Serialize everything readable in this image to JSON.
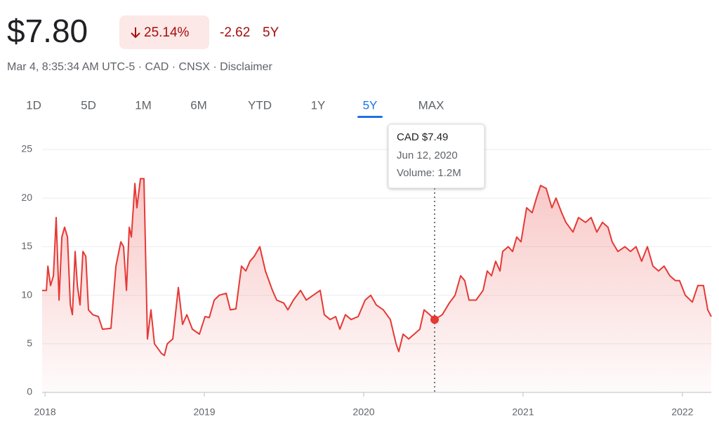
{
  "header": {
    "price": "$7.80",
    "change_pct": "25.14%",
    "change": "-2.62",
    "period": "5Y",
    "meta": "Mar 4, 8:35:34 AM UTC-5 · CAD · CNSX · Disclaimer"
  },
  "tabs": {
    "labels": [
      "1D",
      "5D",
      "1M",
      "6M",
      "YTD",
      "1Y",
      "5Y",
      "MAX"
    ],
    "selected": 6
  },
  "tooltip": {
    "price": "CAD $7.49",
    "date": "Jun 12, 2020",
    "volume": "Volume: 1.2M"
  },
  "chart_data": {
    "type": "area",
    "color": "#e53935",
    "xlim": [
      2017.982,
      2022.181
    ],
    "xticks": [
      2018,
      2019,
      2020,
      2021,
      2022
    ],
    "ylim": [
      0,
      25
    ],
    "yticks": [
      0,
      5,
      10,
      15,
      20,
      25
    ],
    "grid": true,
    "highlight": {
      "x": 2020.445,
      "y": 7.49
    },
    "x": [
      2017.982,
      2018.009,
      2018.018,
      2018.035,
      2018.053,
      2018.07,
      2018.088,
      2018.106,
      2018.123,
      2018.141,
      2018.159,
      2018.172,
      2018.189,
      2018.203,
      2018.22,
      2018.238,
      2018.256,
      2018.273,
      2018.3,
      2018.335,
      2018.361,
      2018.414,
      2018.445,
      2018.476,
      2018.493,
      2018.511,
      2018.529,
      2018.542,
      2018.564,
      2018.577,
      2018.599,
      2018.621,
      2018.643,
      2018.665,
      2018.687,
      2018.731,
      2018.749,
      2018.767,
      2018.802,
      2018.837,
      2018.863,
      2018.89,
      2018.925,
      2018.969,
      2019.004,
      2019.031,
      2019.062,
      2019.093,
      2019.137,
      2019.163,
      2019.198,
      2019.233,
      2019.26,
      2019.286,
      2019.313,
      2019.348,
      2019.383,
      2019.427,
      2019.454,
      2019.498,
      2019.524,
      2019.559,
      2019.604,
      2019.639,
      2019.683,
      2019.727,
      2019.753,
      2019.789,
      2019.824,
      2019.85,
      2019.885,
      2019.921,
      2019.965,
      2020.009,
      2020.044,
      2020.079,
      2020.123,
      2020.167,
      2020.203,
      2020.22,
      2020.247,
      2020.282,
      2020.317,
      2020.352,
      2020.379,
      2020.414,
      2020.445,
      2020.493,
      2020.537,
      2020.573,
      2020.608,
      2020.634,
      2020.661,
      2020.705,
      2020.749,
      2020.775,
      2020.802,
      2020.828,
      2020.855,
      2020.872,
      2020.907,
      2020.934,
      2020.96,
      2020.987,
      2021.022,
      2021.057,
      2021.084,
      2021.11,
      2021.145,
      2021.181,
      2021.207,
      2021.242,
      2021.269,
      2021.313,
      2021.348,
      2021.392,
      2021.427,
      2021.463,
      2021.498,
      2021.533,
      2021.559,
      2021.595,
      2021.639,
      2021.674,
      2021.709,
      2021.744,
      2021.78,
      2021.815,
      2021.85,
      2021.885,
      2021.921,
      2021.956,
      2021.982,
      2022.018,
      2022.062,
      2022.097,
      2022.132,
      2022.159,
      2022.181
    ],
    "values": [
      10.5,
      10.5,
      13,
      11,
      12,
      18,
      9.5,
      16,
      17,
      16,
      9,
      8,
      14.5,
      11,
      9,
      14.5,
      14,
      8.5,
      8,
      7.8,
      6.5,
      6.6,
      13,
      15.5,
      15,
      10.5,
      17,
      16,
      21.5,
      19,
      22,
      22,
      5.5,
      8.5,
      5,
      4,
      3.8,
      5,
      5.5,
      10.8,
      7,
      8,
      6.5,
      6,
      7.8,
      7.7,
      9.5,
      10,
      10.2,
      8.5,
      8.6,
      13,
      12.5,
      13.5,
      14,
      15,
      12.5,
      10.5,
      9.5,
      9.2,
      8.5,
      9.5,
      10.5,
      9.5,
      10,
      10.5,
      8,
      7.5,
      7.8,
      6.5,
      8,
      7.5,
      7.8,
      9.5,
      10,
      9,
      8.5,
      7.5,
      5,
      4.2,
      6,
      5.5,
      6,
      6.5,
      8.5,
      8,
      7.49,
      8,
      9.2,
      10,
      12,
      11.5,
      9.5,
      9.5,
      10.5,
      12.5,
      12,
      13.5,
      12.5,
      14.5,
      15,
      14.5,
      16,
      15.5,
      19,
      18.5,
      20,
      21.3,
      21,
      19,
      20,
      18.5,
      17.5,
      16.5,
      18,
      17.5,
      18,
      16.5,
      17.5,
      17,
      15.5,
      14.5,
      15,
      14.5,
      15,
      13.5,
      15,
      13,
      12.5,
      13,
      12,
      11.5,
      11.5,
      10,
      9.3,
      11,
      11,
      8.5,
      7.8
    ]
  }
}
